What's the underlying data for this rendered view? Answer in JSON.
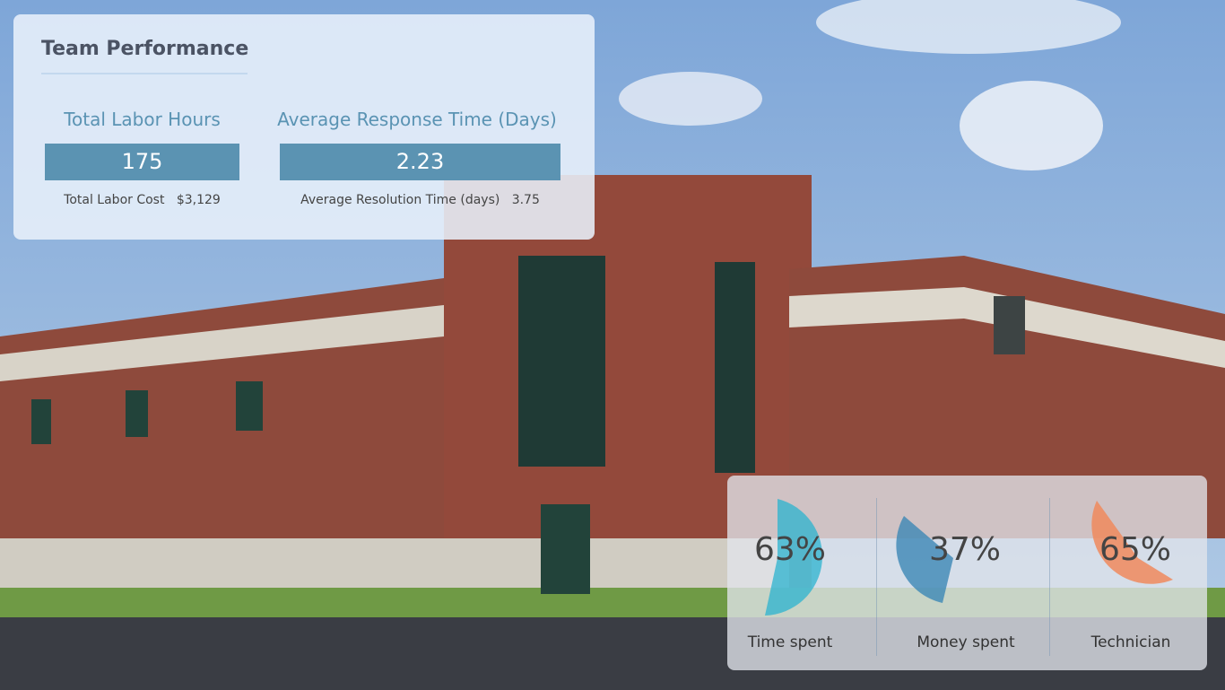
{
  "team_performance": {
    "title": "Team Performance",
    "labor_hours": {
      "label": "Total Labor Hours",
      "value": "175",
      "sub_label": "Total Labor Cost",
      "sub_value": "$3,129"
    },
    "response_time": {
      "label": "Average Response Time (Days)",
      "value": "2.23",
      "sub_label": "Average Resolution Time (days)",
      "sub_value": "3.75"
    }
  },
  "gauges": [
    {
      "label": "Time spent",
      "percent": 63,
      "display": "63%",
      "color": "#2bb3cf"
    },
    {
      "label": "Money spent",
      "percent": 37,
      "display": "37%",
      "color": "#3c87b5"
    },
    {
      "label": "Technician",
      "percent": 65,
      "display": "65%",
      "color": "#f08a5d"
    }
  ]
}
